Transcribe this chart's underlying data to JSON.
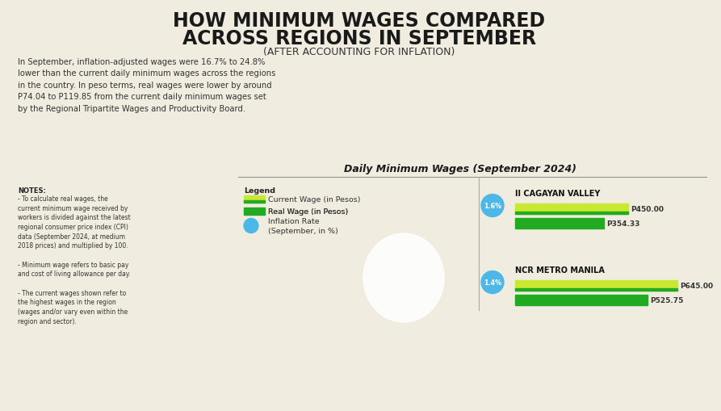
{
  "title_line1": "HOW MINIMUM WAGES COMPARED",
  "title_line2": "ACROSS REGIONS IN SEPTEMBER",
  "subtitle": "(AFTER ACCOUNTING FOR INFLATION)",
  "body_text": "In September, inflation-adjusted wages were 16.7% to 24.8%\nlower than the current daily minimum wages across the regions\nin the country. In peso terms, real wages were lower by around\nP74.04 to P119.85 from the current daily minimum wages set\nby the Regional Tripartite Wages and Productivity Board.",
  "chart_title": "Daily Minimum Wages (September 2024)",
  "notes_title": "NOTES:",
  "notes_text": "- To calculate real wages, the\ncurrent minimum wage received by\nworkers is divided against the latest\nregional consumer price index (CPI)\ndata (September 2024, at medium\n2018 prices) and multiplied by 100.\n\n- Minimum wage refers to basic pay\nand cost of living allowance per day.\n\n- The current wages shown refer to\nthe highest wages in the region\n(wages and/or vary even within the\nregion and sector).",
  "legend_label": "Legend",
  "legend_current": "Current Wage (in Pesos)",
  "legend_real": "Real Wage (in Pesos)",
  "legend_inflation": "Inflation Rate\n(September, in %)",
  "regions": [
    {
      "name": "II CAGAYAN VALLEY",
      "inflation_rate": "1.6%",
      "current_wage": 450.0,
      "real_wage": 354.33,
      "current_label": "P450.00",
      "real_label": "P354.33"
    },
    {
      "name": "NCR METRO MANILA",
      "inflation_rate": "1.4%",
      "current_wage": 645.0,
      "real_wage": 525.75,
      "current_label": "P645.00",
      "real_label": "P525.75"
    }
  ],
  "bg_color": "#f0ece0",
  "current_wage_color": "#c8e832",
  "real_wage_color": "#22aa22",
  "inflation_bubble_color": "#4db8e8",
  "max_wage": 680,
  "title_fontsize": 17,
  "subtitle_fontsize": 9,
  "body_fontsize": 7.2,
  "chart_title_fontsize": 9,
  "notes_fontsize": 5.5,
  "legend_fontsize": 6.8,
  "region_name_fontsize": 7,
  "bar_label_fontsize": 6.5
}
